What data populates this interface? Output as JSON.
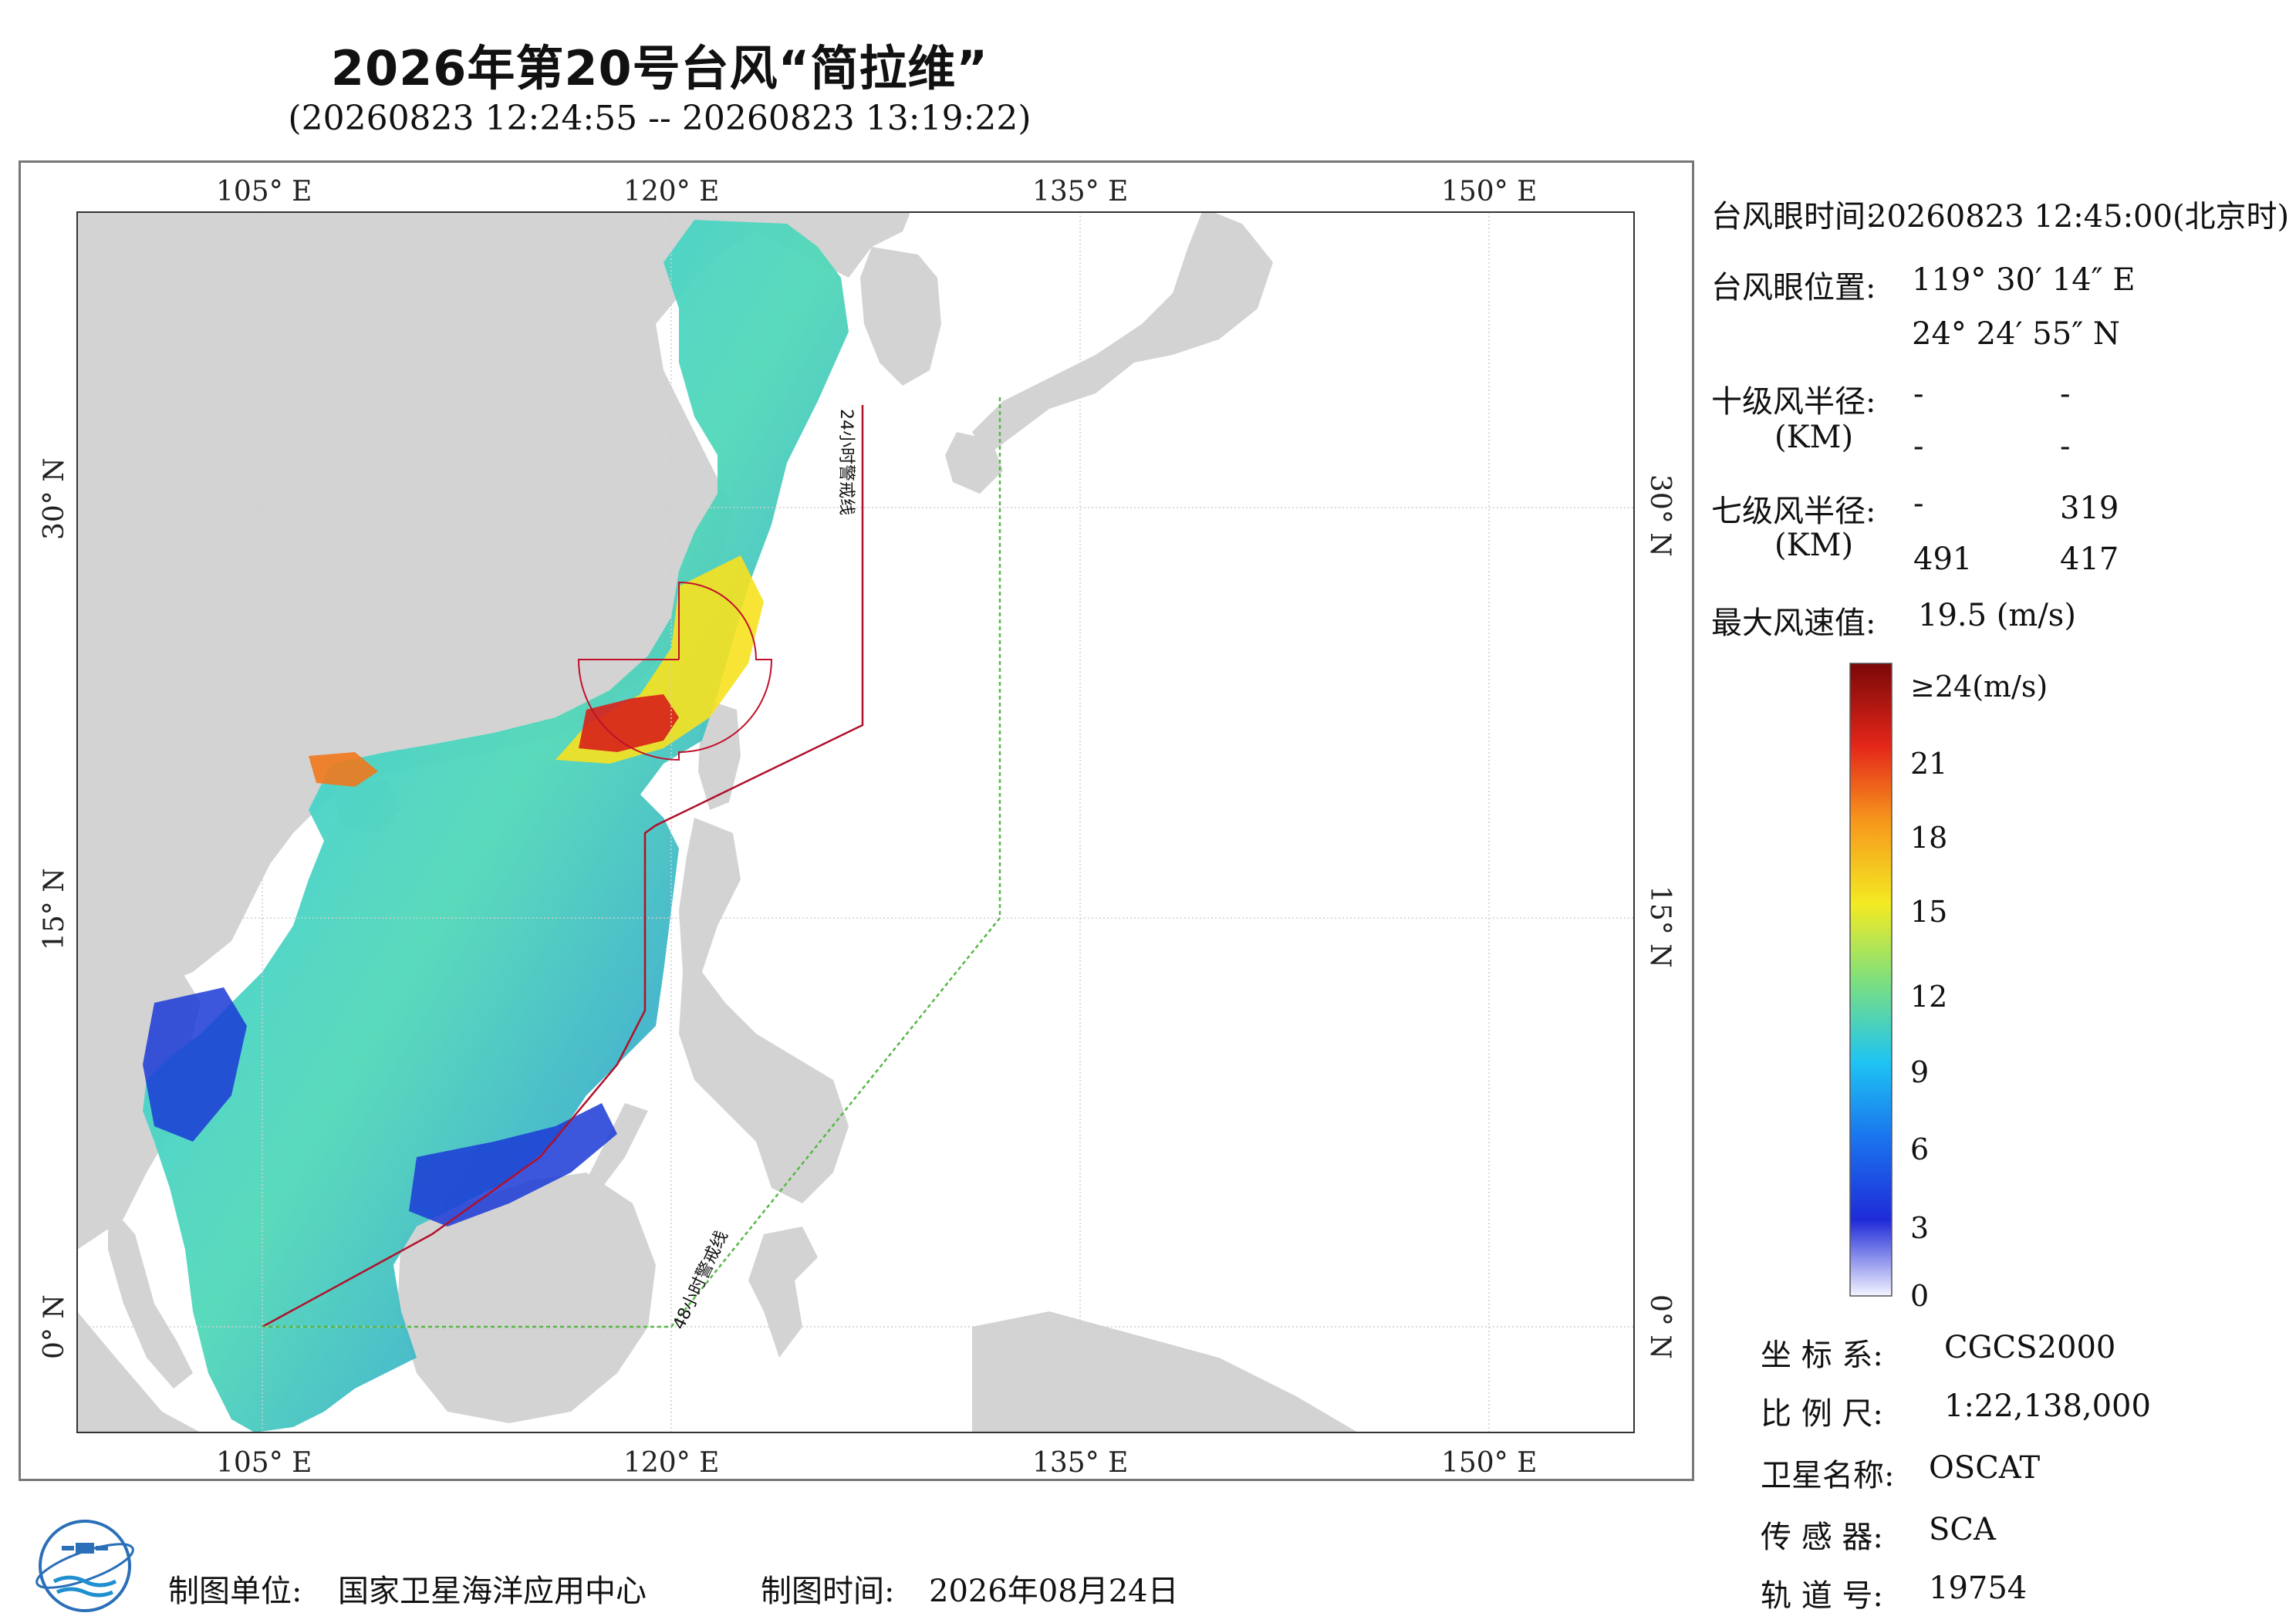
{
  "header": {
    "title": "2026年第20号台风“简拉维”",
    "subtitle": "(20260823 12:24:55 -- 20260823 13:19:22)"
  },
  "map": {
    "lon_ticks": [
      "105° E",
      "120° E",
      "135° E",
      "150° E"
    ],
    "lat_ticks": [
      "30° N",
      "15° N",
      "0° N"
    ],
    "warning_24h": "24小时警戒线",
    "warning_48h": "48小时警戒线",
    "colors": {
      "land": "#d3d3d3",
      "sea": "#ffffff",
      "warning_24h": "#b0102a",
      "warning_48h": "#55b845"
    }
  },
  "info": {
    "eye_time_label": "台风眼时间:",
    "eye_time_value": "20260823 12:45:00(北京时)",
    "eye_pos_label": "台风眼位置:",
    "eye_lon": "119° 30′ 14″ E",
    "eye_lat": "24° 24′ 55″ N",
    "r10_label": "十级风半径:",
    "r10_unit": "(KM)",
    "r10_values": [
      "-",
      "-",
      "-",
      "-"
    ],
    "r7_label": "七级风半径:",
    "r7_unit": "(KM)",
    "r7_values": [
      "-",
      "319",
      "491",
      "417"
    ],
    "max_wind_label": "最大风速值:",
    "max_wind_value": "19.5  (m/s)"
  },
  "colorbar": {
    "labels": [
      "≥24(m/s)",
      "21",
      "18",
      "15",
      "12",
      "9",
      "6",
      "3",
      "0"
    ],
    "stops": [
      "#f4f4ff",
      "#1f2bd8",
      "#1a74ee",
      "#1ec4f2",
      "#7fe07c",
      "#f4ea22",
      "#f6981c",
      "#e4261a",
      "#7a0808"
    ]
  },
  "meta": {
    "crs_label": "坐 标 系:",
    "crs_value": "CGCS2000",
    "scale_label": "比 例 尺:",
    "scale_value": "1:22,138,000",
    "sat_label": "卫星名称:",
    "sat_value": "OSCAT",
    "sensor_label": "传 感 器:",
    "sensor_value": "SCA",
    "orbit_label": "轨 道 号:",
    "orbit_value": "19754"
  },
  "footer": {
    "unit_label": "制图单位:",
    "unit_value": "国家卫星海洋应用中心",
    "date_label": "制图时间:",
    "date_value": "2026年08月24日"
  }
}
